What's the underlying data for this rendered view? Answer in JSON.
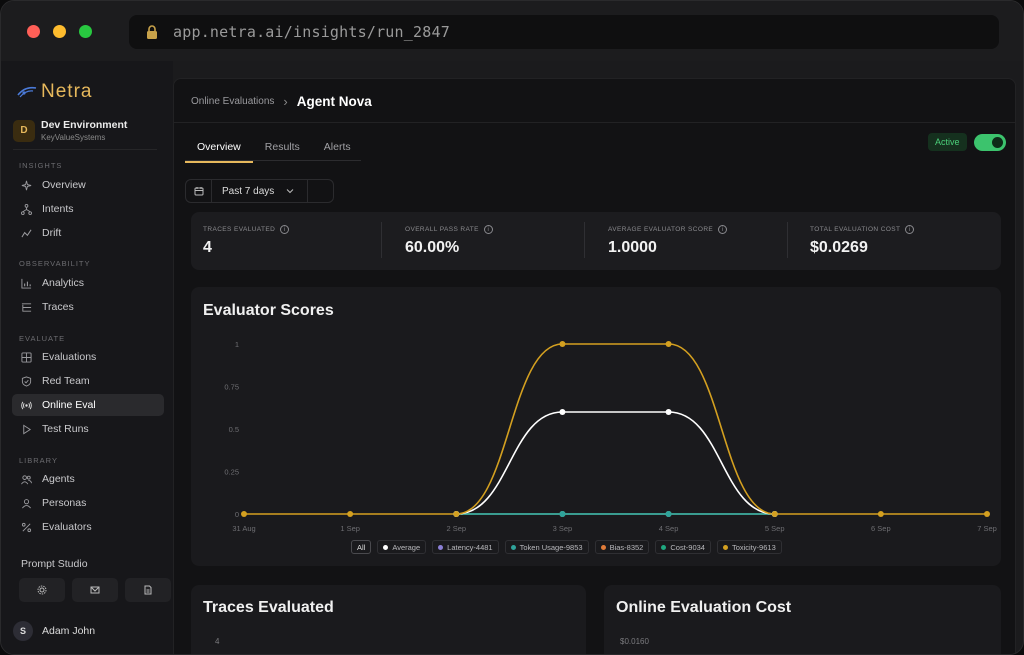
{
  "browser": {
    "url": "app.netra.ai/insights/run_2847"
  },
  "sidebar": {
    "brand": "Netra",
    "environment": {
      "avatar": "D",
      "title": "Dev Environment",
      "subtitle": "KeyValueSystems"
    },
    "sections": [
      {
        "label": "INSIGHTS",
        "items": [
          {
            "label": "Overview",
            "icon": "sparkles-icon"
          },
          {
            "label": "Intents",
            "icon": "network-icon"
          },
          {
            "label": "Drift",
            "icon": "trend-icon"
          }
        ]
      },
      {
        "label": "OBSERVABILITY",
        "items": [
          {
            "label": "Analytics",
            "icon": "chart-icon"
          },
          {
            "label": "Traces",
            "icon": "list-tree-icon"
          }
        ]
      },
      {
        "label": "EVALUATE",
        "items": [
          {
            "label": "Evaluations",
            "icon": "grid-icon"
          },
          {
            "label": "Red Team",
            "icon": "shield-icon"
          },
          {
            "label": "Online Eval",
            "icon": "broadcast-icon",
            "active": true
          },
          {
            "label": "Test Runs",
            "icon": "play-icon"
          }
        ]
      },
      {
        "label": "LIBRARY",
        "items": [
          {
            "label": "Agents",
            "icon": "users-icon"
          },
          {
            "label": "Personas",
            "icon": "persona-icon"
          },
          {
            "label": "Evaluators",
            "icon": "percent-icon"
          }
        ]
      }
    ],
    "prompt_studio": "Prompt Studio",
    "user": {
      "avatar": "S",
      "name": "Adam John"
    }
  },
  "header": {
    "breadcrumb_parent": "Online Evaluations",
    "breadcrumb_current": "Agent Nova",
    "tabs": [
      "Overview",
      "Results",
      "Alerts"
    ],
    "active_tab": "Overview",
    "status": "Active",
    "toggle_on": true
  },
  "filter": {
    "date_range": "Past 7 days"
  },
  "stats": [
    {
      "label": "TRACES EVALUATED",
      "value": "4"
    },
    {
      "label": "OVERALL PASS RATE",
      "value": "60.00%"
    },
    {
      "label": "AVERAGE EVALUATOR SCORE",
      "value": "1.0000"
    },
    {
      "label": "TOTAL EVALUATION COST",
      "value": "$0.0269"
    }
  ],
  "evaluator_scores": {
    "title": "Evaluator Scores",
    "legend_all": "All"
  },
  "chart_data": {
    "type": "line",
    "x": [
      "31 Aug",
      "1 Sep",
      "2 Sep",
      "3 Sep",
      "4 Sep",
      "5 Sep",
      "6 Sep",
      "7 Sep"
    ],
    "ylim": [
      0,
      1
    ],
    "yticks": [
      "0",
      "0.25",
      "0.5",
      "0.75",
      "1"
    ],
    "series": [
      {
        "name": "Average",
        "color": "#ffffff",
        "values": [
          null,
          null,
          0,
          0.6,
          0.6,
          0,
          null,
          null
        ]
      },
      {
        "name": "Latency-4481",
        "color": "#8b7fd6",
        "values": [
          null,
          null,
          0,
          0,
          0,
          0,
          null,
          null
        ]
      },
      {
        "name": "Token Usage-9853",
        "color": "#2fa39b",
        "values": [
          null,
          null,
          0,
          0,
          0,
          0,
          null,
          null
        ]
      },
      {
        "name": "Bias-8352",
        "color": "#e07b39",
        "values": [
          null,
          null,
          0,
          0,
          0,
          0,
          null,
          null
        ]
      },
      {
        "name": "Cost-9034",
        "color": "#1fa880",
        "values": [
          null,
          null,
          0,
          0,
          0,
          0,
          null,
          null
        ]
      },
      {
        "name": "Toxicity-9613",
        "color": "#d4a020",
        "values": [
          0,
          0,
          0,
          1,
          1,
          0,
          0,
          0
        ]
      }
    ],
    "grid": false,
    "legend": "bottom"
  },
  "bottom_cards": {
    "traces_title": "Traces Evaluated",
    "traces_first_tick": "4",
    "cost_title": "Online Evaluation Cost",
    "cost_first_tick": "$0.0160"
  }
}
